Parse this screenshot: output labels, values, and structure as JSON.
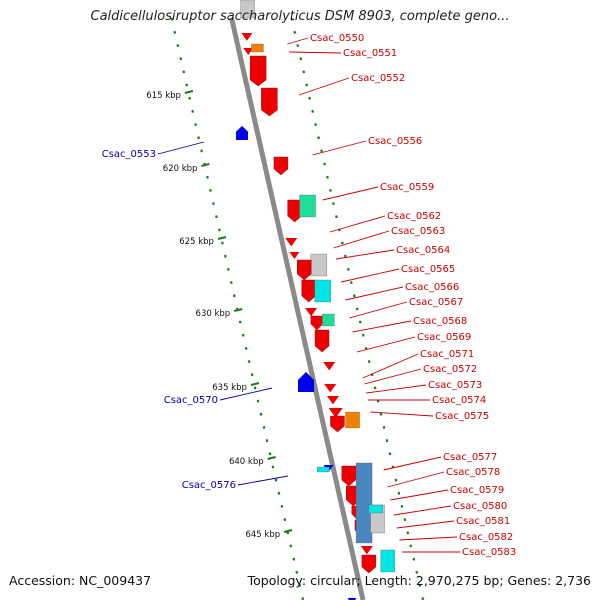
{
  "title": "Caldicellulosiruptor saccharolyticus DSM 8903, complete geno...",
  "footer": {
    "accession": "Accession: NC_009437",
    "summary": "Topology: circular; Length: 2,970,275 bp; Genes: 2,736"
  },
  "colors": {
    "backbone": "#8a8a8a",
    "tick": "#1a7a1a",
    "label_red": "#cc0000",
    "label_blue": "#0000aa",
    "cds": "#ee0000",
    "rna_blue": "#0000ee",
    "orange": "#f08000",
    "gray": "#c8c8c8",
    "cyan": "#00e5e5",
    "teal": "#22dd99",
    "steelblue": "#4a86c0"
  },
  "scale_ticks": [
    "615 kbp",
    "620 kbp",
    "625 kbp",
    "630 kbp",
    "635 kbp",
    "640 kbp",
    "645 kbp"
  ],
  "right_labels": [
    "Csac_0550",
    "Csac_0551",
    "Csac_0552",
    "Csac_0556",
    "Csac_0559",
    "Csac_0562",
    "Csac_0563",
    "Csac_0564",
    "Csac_0565",
    "Csac_0566",
    "Csac_0567",
    "Csac_0568",
    "Csac_0569",
    "Csac_0571",
    "Csac_0572",
    "Csac_0573",
    "Csac_0574",
    "Csac_0575",
    "Csac_0577",
    "Csac_0578",
    "Csac_0579",
    "Csac_0580",
    "Csac_0581",
    "Csac_0582",
    "Csac_0583"
  ],
  "left_labels": [
    "Csac_0553",
    "Csac_0570",
    "Csac_0576"
  ]
}
